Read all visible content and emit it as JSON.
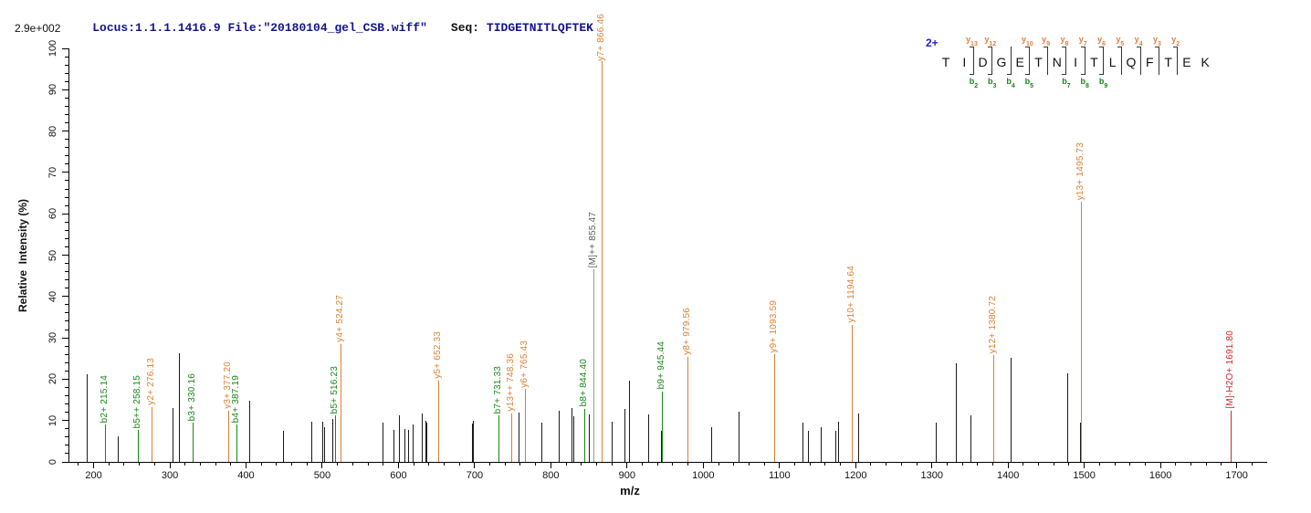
{
  "header": {
    "locus_file": "Locus:1.1.1.1416.9 File:\"20180104_gel_CSB.wiff\"",
    "seq_label": "Seq:",
    "sequence": "TIDGETNITLQFTEK"
  },
  "axes": {
    "intensity_scale": "2.9e+002",
    "ylabel": "Relative  Intensity (%)",
    "xlabel": "m/z"
  },
  "sequence_annotation": {
    "charge": "2+",
    "residues": [
      "T",
      "I",
      "D",
      "G",
      "E",
      "T",
      "N",
      "I",
      "T",
      "L",
      "Q",
      "F",
      "T",
      "E",
      "K"
    ],
    "cleavages": [
      {
        "after": 2,
        "y": "y13",
        "b": "b2"
      },
      {
        "after": 3,
        "y": "y12",
        "b": "b3"
      },
      {
        "after": 4,
        "y": null,
        "b": "b4"
      },
      {
        "after": 5,
        "y": "y10",
        "b": "b5"
      },
      {
        "after": 6,
        "y": "y9",
        "b": null
      },
      {
        "after": 7,
        "y": "y8",
        "b": "b7"
      },
      {
        "after": 8,
        "y": "y7",
        "b": "b8"
      },
      {
        "after": 9,
        "y": "y6",
        "b": "b9"
      },
      {
        "after": 10,
        "y": "y5",
        "b": null
      },
      {
        "after": 11,
        "y": "y4",
        "b": null
      },
      {
        "after": 12,
        "y": "y3",
        "b": null
      },
      {
        "after": 13,
        "y": "y2",
        "b": null
      }
    ]
  },
  "colors": {
    "header_text": "#14148c",
    "charge_label": "#2222cc",
    "series": {
      "b": {
        "line": "#168616",
        "label": "#168616"
      },
      "y": {
        "line": "#dd8033",
        "label": "#dd8033"
      },
      "precursor": {
        "line": "#9a9a9a",
        "label": "#5a5a5a"
      },
      "precursor_loss": {
        "line": "#cc2a2a",
        "label": "#cc2a2a"
      },
      "unassigned": {
        "line": "#1a1a1a",
        "label": "#1a1a1a"
      }
    }
  },
  "chart_data": {
    "type": "stick",
    "title": "MS/MS fragment spectrum of peptide TIDGETNITLQFTEK (2+)",
    "xlabel": "m/z",
    "ylabel": "Relative  Intensity (%)",
    "xlim": [
      167,
      1740
    ],
    "ylim": [
      0,
      100
    ],
    "x_major_ticks": [
      200,
      300,
      400,
      500,
      600,
      700,
      800,
      900,
      1000,
      1100,
      1200,
      1300,
      1400,
      1500,
      1600,
      1700
    ],
    "x_minor_tick_step": 20,
    "y_major_tick_step": 10,
    "y_minor_tick_step": 2,
    "grid": false,
    "base_peak_intensity": "2.9e+002",
    "peaks": [
      {
        "mz": 191.0,
        "intensity": 21.2,
        "series": "unassigned"
      },
      {
        "mz": 215.14,
        "intensity": 9.0,
        "series": "b",
        "label": "b2+ 215.14"
      },
      {
        "mz": 232.0,
        "intensity": 6.2,
        "series": "unassigned"
      },
      {
        "mz": 258.15,
        "intensity": 7.7,
        "series": "b",
        "label": "b5++ 258.15"
      },
      {
        "mz": 276.13,
        "intensity": 13.3,
        "series": "y",
        "label": "y2+ 276.13"
      },
      {
        "mz": 303.0,
        "intensity": 13.0,
        "series": "unassigned"
      },
      {
        "mz": 312.0,
        "intensity": 26.3,
        "series": "unassigned"
      },
      {
        "mz": 330.16,
        "intensity": 9.4,
        "series": "b",
        "label": "b3+ 330.16"
      },
      {
        "mz": 377.2,
        "intensity": 12.4,
        "series": "y",
        "label": "y3+ 377.20"
      },
      {
        "mz": 387.19,
        "intensity": 9.0,
        "series": "b",
        "label": "b4+ 387.19"
      },
      {
        "mz": 404.0,
        "intensity": 14.8,
        "series": "unassigned"
      },
      {
        "mz": 448.0,
        "intensity": 7.5,
        "series": "unassigned"
      },
      {
        "mz": 486.0,
        "intensity": 9.7,
        "series": "unassigned"
      },
      {
        "mz": 500.0,
        "intensity": 9.7,
        "series": "unassigned"
      },
      {
        "mz": 502.0,
        "intensity": 8.3,
        "series": "unassigned"
      },
      {
        "mz": 513.0,
        "intensity": 10.3,
        "series": "unassigned"
      },
      {
        "mz": 516.23,
        "intensity": 11.2,
        "series": "b",
        "label": "b5+ 516.23"
      },
      {
        "mz": 524.27,
        "intensity": 28.5,
        "series": "y",
        "label": "y4+ 524.27"
      },
      {
        "mz": 579.0,
        "intensity": 9.6,
        "series": "unassigned"
      },
      {
        "mz": 593.0,
        "intensity": 7.8,
        "series": "unassigned"
      },
      {
        "mz": 601.0,
        "intensity": 11.2,
        "series": "unassigned"
      },
      {
        "mz": 608.0,
        "intensity": 8.0,
        "series": "unassigned"
      },
      {
        "mz": 613.0,
        "intensity": 7.8,
        "series": "unassigned"
      },
      {
        "mz": 619.0,
        "intensity": 9.0,
        "series": "unassigned"
      },
      {
        "mz": 631.0,
        "intensity": 11.7,
        "series": "unassigned"
      },
      {
        "mz": 635.0,
        "intensity": 9.9,
        "series": "unassigned"
      },
      {
        "mz": 637.0,
        "intensity": 9.5,
        "series": "unassigned"
      },
      {
        "mz": 652.33,
        "intensity": 19.7,
        "series": "y",
        "label": "y5+ 652.33"
      },
      {
        "mz": 696.0,
        "intensity": 9.3,
        "series": "unassigned"
      },
      {
        "mz": 698.0,
        "intensity": 10.0,
        "series": "unassigned"
      },
      {
        "mz": 731.33,
        "intensity": 11.2,
        "series": "b",
        "label": "b7+ 731.33"
      },
      {
        "mz": 748.36,
        "intensity": 11.8,
        "series": "y",
        "label": "y13++ 748.36"
      },
      {
        "mz": 758.0,
        "intensity": 11.9,
        "series": "unassigned"
      },
      {
        "mz": 765.43,
        "intensity": 17.6,
        "series": "y",
        "label": "y6+ 765.43"
      },
      {
        "mz": 787.0,
        "intensity": 9.4,
        "series": "unassigned"
      },
      {
        "mz": 810.0,
        "intensity": 12.4,
        "series": "unassigned"
      },
      {
        "mz": 827.0,
        "intensity": 13.0,
        "series": "unassigned"
      },
      {
        "mz": 829.0,
        "intensity": 11.0,
        "series": "unassigned"
      },
      {
        "mz": 844.4,
        "intensity": 12.9,
        "series": "b",
        "label": "b8+ 844.40"
      },
      {
        "mz": 850.0,
        "intensity": 11.4,
        "series": "unassigned"
      },
      {
        "mz": 855.47,
        "intensity": 46.6,
        "series": "precursor",
        "label": "[M]++ 855.47"
      },
      {
        "mz": 866.46,
        "intensity": 100,
        "series": "y",
        "label": "y7+ 866.46"
      },
      {
        "mz": 880.0,
        "intensity": 9.7,
        "series": "unassigned"
      },
      {
        "mz": 896.0,
        "intensity": 12.8,
        "series": "unassigned"
      },
      {
        "mz": 903.0,
        "intensity": 19.6,
        "series": "unassigned"
      },
      {
        "mz": 928.0,
        "intensity": 11.5,
        "series": "unassigned"
      },
      {
        "mz": 944.0,
        "intensity": 7.5,
        "series": "unassigned"
      },
      {
        "mz": 945.44,
        "intensity": 17.1,
        "series": "b",
        "label": "b9+ 945.44"
      },
      {
        "mz": 979.56,
        "intensity": 25.5,
        "series": "y",
        "label": "y8+ 979.56"
      },
      {
        "mz": 1010.0,
        "intensity": 8.5,
        "series": "unassigned"
      },
      {
        "mz": 1046.0,
        "intensity": 12.1,
        "series": "unassigned"
      },
      {
        "mz": 1093.59,
        "intensity": 26.0,
        "series": "y",
        "label": "y9+ 1093.59"
      },
      {
        "mz": 1130.0,
        "intensity": 9.6,
        "series": "unassigned"
      },
      {
        "mz": 1137.0,
        "intensity": 7.6,
        "series": "unassigned"
      },
      {
        "mz": 1154.0,
        "intensity": 8.3,
        "series": "unassigned"
      },
      {
        "mz": 1173.0,
        "intensity": 7.4,
        "series": "unassigned"
      },
      {
        "mz": 1177.0,
        "intensity": 9.7,
        "series": "unassigned"
      },
      {
        "mz": 1194.64,
        "intensity": 33.2,
        "series": "y",
        "label": "y10+ 1194.64"
      },
      {
        "mz": 1203.0,
        "intensity": 11.6,
        "series": "unassigned"
      },
      {
        "mz": 1305.0,
        "intensity": 9.6,
        "series": "unassigned"
      },
      {
        "mz": 1332.0,
        "intensity": 23.9,
        "series": "unassigned"
      },
      {
        "mz": 1351.0,
        "intensity": 11.2,
        "series": "unassigned"
      },
      {
        "mz": 1380.72,
        "intensity": 25.8,
        "series": "y",
        "label": "y12+ 1380.72"
      },
      {
        "mz": 1403.0,
        "intensity": 25.2,
        "series": "unassigned"
      },
      {
        "mz": 1478.0,
        "intensity": 21.4,
        "series": "unassigned"
      },
      {
        "mz": 1494.0,
        "intensity": 9.6,
        "series": "unassigned"
      },
      {
        "mz": 1495.73,
        "intensity": 62.9,
        "series": "y",
        "label": "y13+ 1495.73"
      },
      {
        "mz": 1691.8,
        "intensity": 12.4,
        "series": "precursor_loss",
        "label": "[M]-H2O+ 1691.80"
      }
    ]
  }
}
